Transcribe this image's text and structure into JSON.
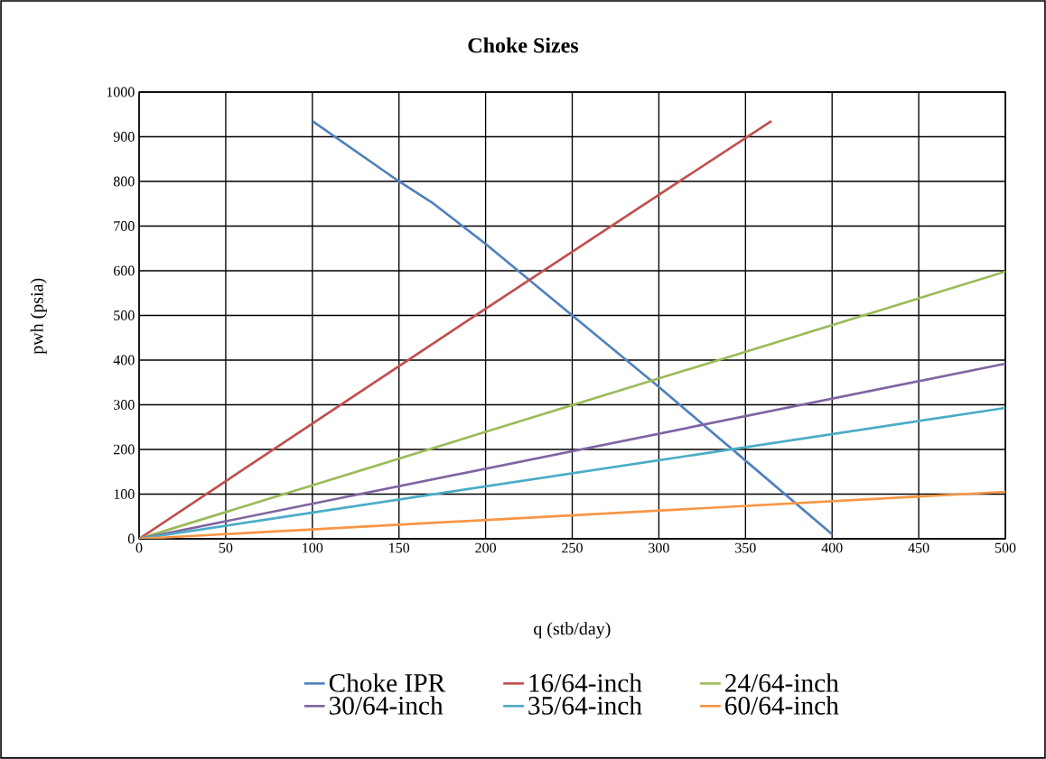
{
  "chart_data": {
    "type": "line",
    "title": "Choke Sizes",
    "xlabel": "q (stb/day)",
    "ylabel": "pwh (psia)",
    "xlim": [
      0,
      500
    ],
    "ylim": [
      0,
      1000
    ],
    "xticks": [
      0,
      50,
      100,
      150,
      200,
      250,
      300,
      350,
      400,
      450,
      500
    ],
    "yticks": [
      0,
      100,
      200,
      300,
      400,
      500,
      600,
      700,
      800,
      900,
      1000
    ],
    "grid": true,
    "legend": "bottom",
    "marker": "none",
    "line_style": "solid",
    "series": [
      {
        "name": "Choke IPR",
        "color": "#4f81bd",
        "x": [
          100,
          150,
          170,
          200,
          250,
          300,
          350,
          400
        ],
        "values": [
          935,
          800,
          750,
          660,
          500,
          340,
          175,
          10
        ]
      },
      {
        "name": "16/64-inch",
        "color": "#c0504d",
        "x": [
          0,
          100,
          200,
          300,
          365
        ],
        "values": [
          0,
          258,
          515,
          770,
          935
        ]
      },
      {
        "name": "24/64-inch",
        "color": "#9bbb59",
        "x": [
          0,
          500
        ],
        "values": [
          0,
          598
        ]
      },
      {
        "name": "30/64-inch",
        "color": "#8064a2",
        "x": [
          0,
          500
        ],
        "values": [
          0,
          392
        ]
      },
      {
        "name": "35/64-inch",
        "color": "#4bacc6",
        "x": [
          0,
          500
        ],
        "values": [
          0,
          293
        ]
      },
      {
        "name": "60/64-inch",
        "color": "#f79646",
        "x": [
          0,
          500
        ],
        "values": [
          0,
          105
        ]
      }
    ]
  }
}
